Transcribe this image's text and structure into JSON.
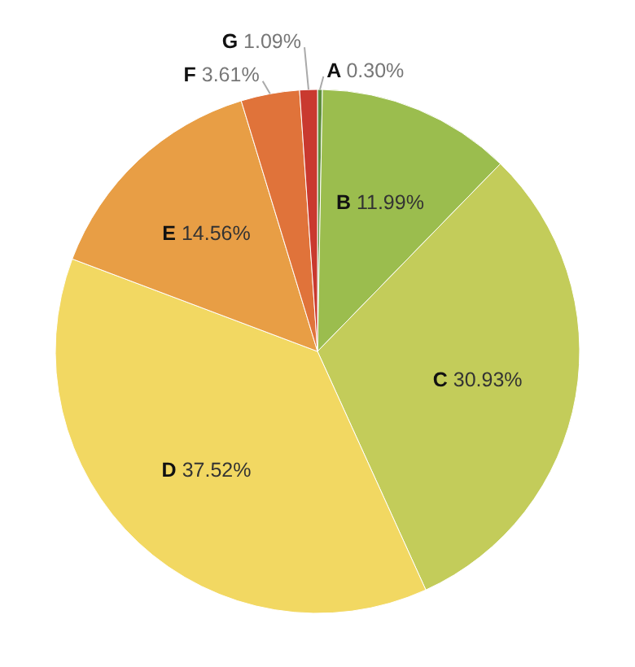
{
  "chart_data": {
    "type": "pie",
    "categories": [
      "A",
      "B",
      "C",
      "D",
      "E",
      "F",
      "G"
    ],
    "values": [
      0.3,
      11.99,
      30.93,
      37.52,
      14.56,
      3.61,
      1.09
    ],
    "value_labels": [
      "0.30%",
      "11.99%",
      "30.93%",
      "37.52%",
      "14.56%",
      "3.61%",
      "1.09%"
    ],
    "colors": [
      "#5e8f3c",
      "#9bbd4e",
      "#c3cc5a",
      "#f2d862",
      "#e89e45",
      "#e0733a",
      "#c9392f"
    ]
  }
}
